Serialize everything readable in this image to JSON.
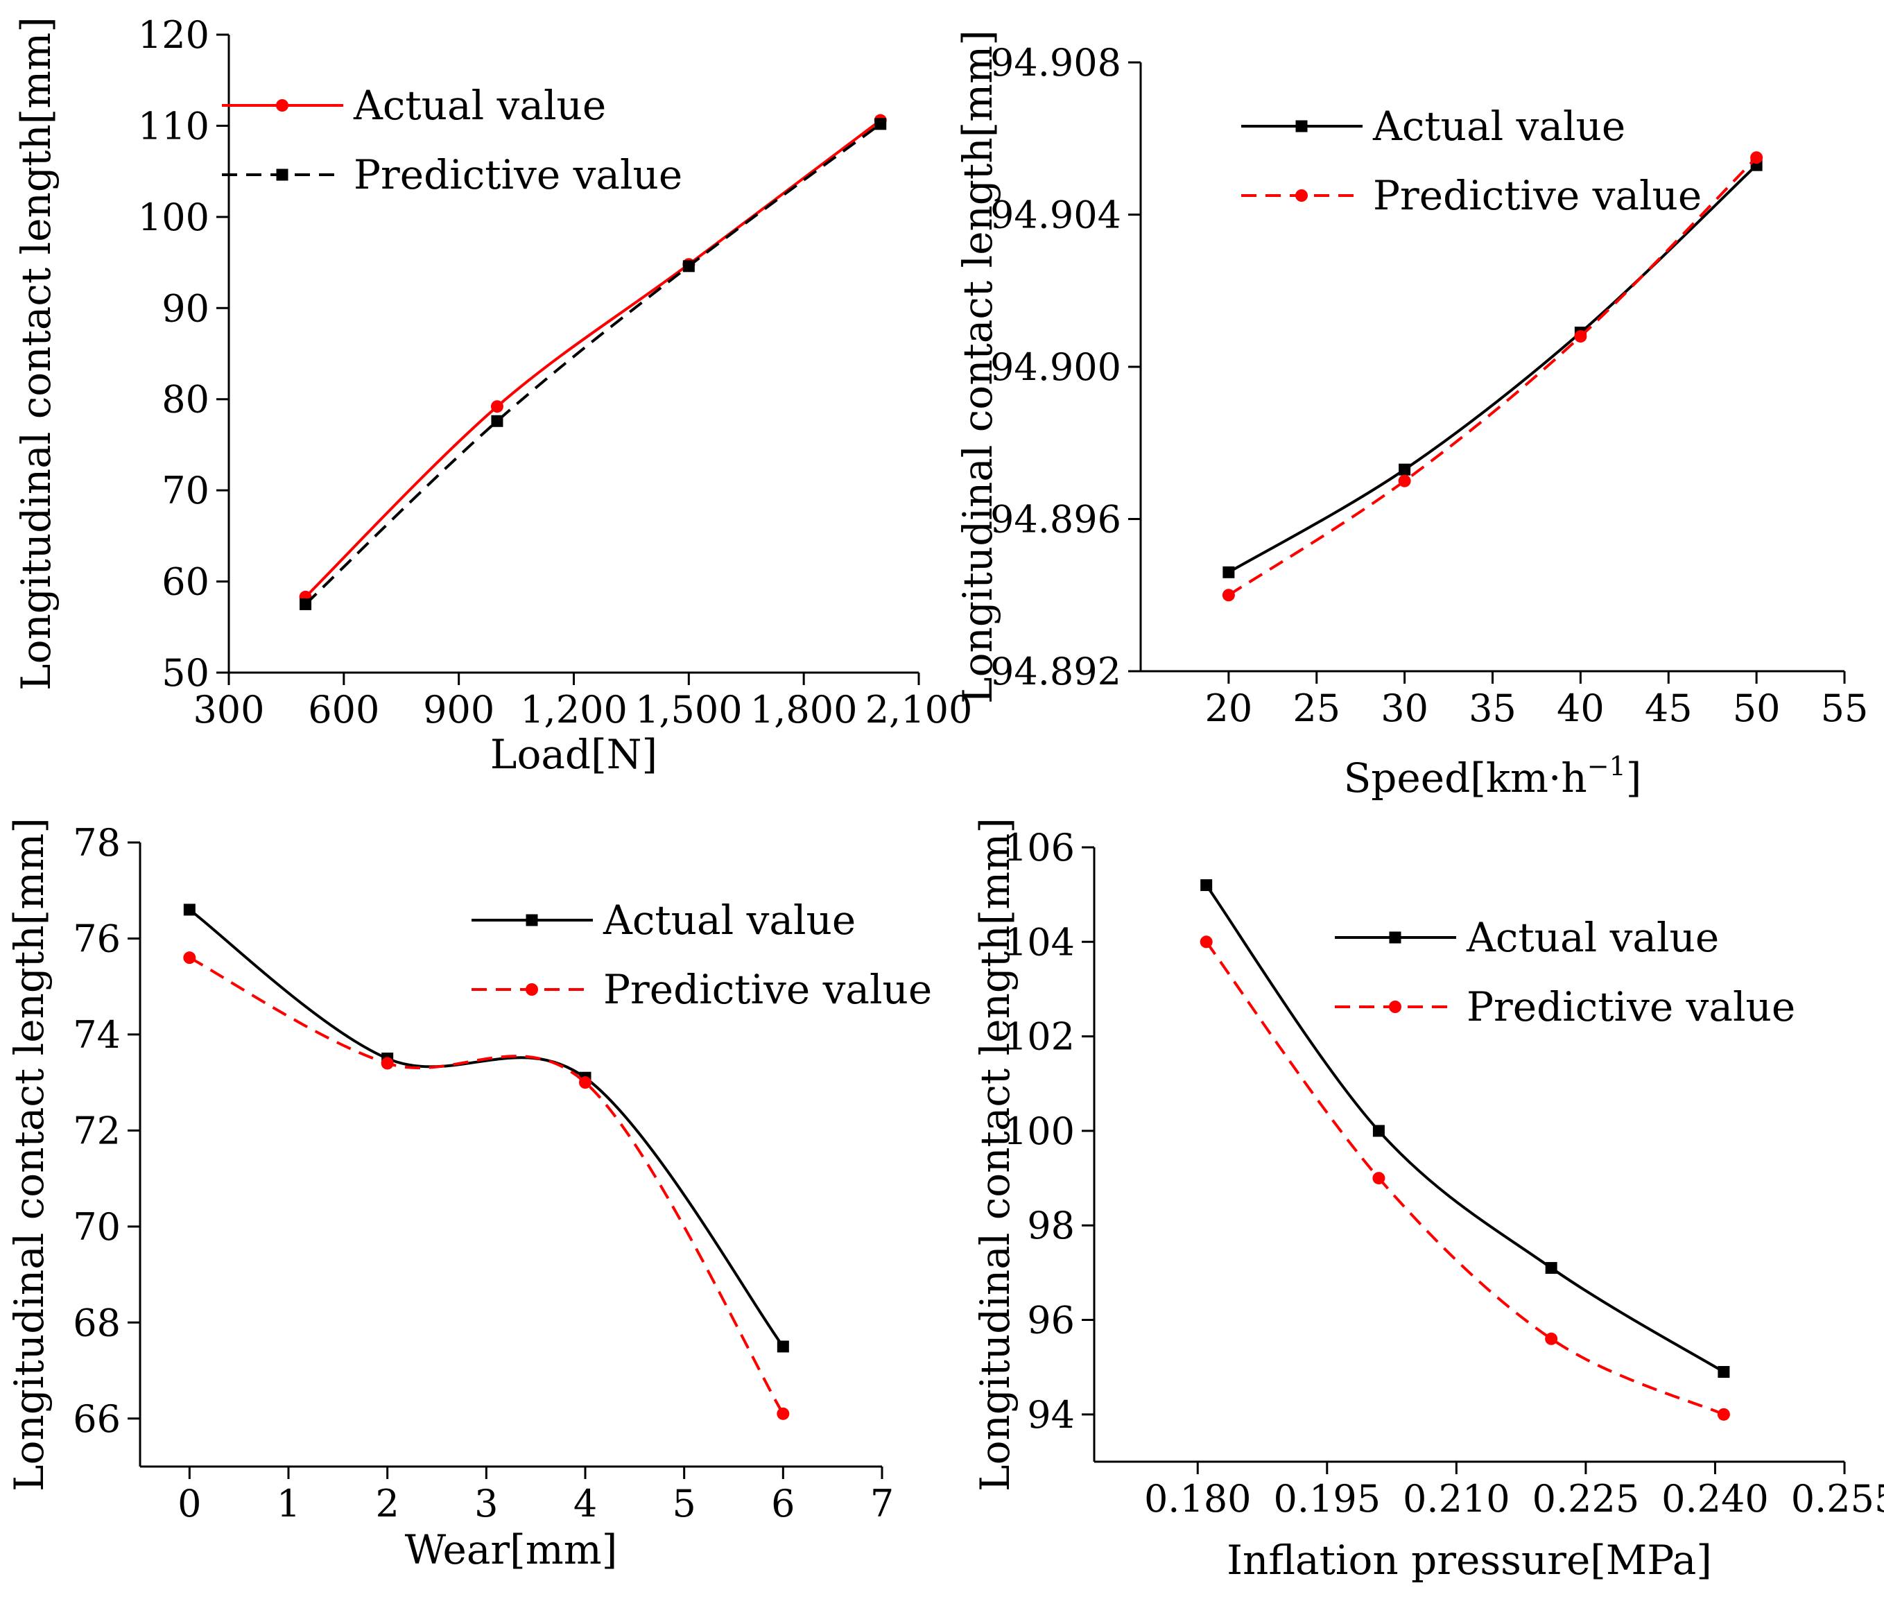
{
  "chart_data": [
    {
      "type": "line",
      "xlabel": "Load[N]",
      "ylabel": "Longitudinal contact length[mm]",
      "xlim": [
        300,
        2100
      ],
      "ylim": [
        50,
        120
      ],
      "xticks": [
        300,
        600,
        900,
        1200,
        1500,
        1800,
        2100
      ],
      "xtick_labels": [
        "300",
        "600",
        "900",
        "1,200",
        "1,500",
        "1,800",
        "2,100"
      ],
      "yticks": [
        50,
        60,
        70,
        80,
        90,
        100,
        110,
        120
      ],
      "ytick_labels": [
        "50",
        "60",
        "70",
        "80",
        "90",
        "100",
        "110",
        "120"
      ],
      "legend_position": "top-left",
      "series": [
        {
          "name": "Actual value",
          "color": "#ff0000",
          "dash": "solid",
          "marker": "circle",
          "x": [
            500,
            1000,
            1500,
            2000
          ],
          "y": [
            58.3,
            79.2,
            94.8,
            110.6
          ]
        },
        {
          "name": "Predictive value",
          "color": "#000000",
          "dash": "dashed",
          "marker": "square",
          "x": [
            500,
            1000,
            1500,
            2000
          ],
          "y": [
            57.5,
            77.6,
            94.6,
            110.2
          ]
        }
      ]
    },
    {
      "type": "line",
      "xlabel": "Speed[km·h",
      "xlabel_sup": "−1",
      "xlabel_end": "]",
      "ylabel": "Longitudinal contact length[mm]",
      "xlim": [
        15,
        55
      ],
      "ylim": [
        94.892,
        94.908
      ],
      "xticks": [
        20,
        25,
        30,
        35,
        40,
        45,
        50,
        55
      ],
      "xtick_labels": [
        "20",
        "25",
        "30",
        "35",
        "40",
        "45",
        "50",
        "55"
      ],
      "yticks": [
        94.892,
        94.896,
        94.9,
        94.904,
        94.908
      ],
      "ytick_labels": [
        "94.892",
        "94.896",
        "94.900",
        "94.904",
        "94.908"
      ],
      "legend_position": "top-left",
      "series": [
        {
          "name": "Actual value",
          "color": "#000000",
          "dash": "solid",
          "marker": "square",
          "x": [
            20,
            30,
            40,
            50
          ],
          "y": [
            94.8946,
            94.8973,
            94.9009,
            94.9053
          ]
        },
        {
          "name": "Predictive value",
          "color": "#ff0000",
          "dash": "dashed",
          "marker": "circle",
          "x": [
            20,
            30,
            40,
            50
          ],
          "y": [
            94.894,
            94.897,
            94.9008,
            94.9055
          ]
        }
      ]
    },
    {
      "type": "line",
      "xlabel": "Wear[mm]",
      "ylabel": "Longitudinal contact length[mm]",
      "xlim": [
        -0.5,
        7
      ],
      "ylim": [
        65,
        78
      ],
      "xticks": [
        0,
        1,
        2,
        3,
        4,
        5,
        6,
        7
      ],
      "xtick_labels": [
        "0",
        "1",
        "2",
        "3",
        "4",
        "5",
        "6",
        "7"
      ],
      "yticks": [
        66,
        68,
        70,
        72,
        74,
        76,
        78
      ],
      "ytick_labels": [
        "66",
        "68",
        "70",
        "72",
        "74",
        "76",
        "78"
      ],
      "legend_position": "top-right",
      "series": [
        {
          "name": "Actual value",
          "color": "#000000",
          "dash": "solid",
          "marker": "square",
          "x": [
            0,
            2,
            4,
            6
          ],
          "y": [
            76.6,
            73.5,
            73.1,
            67.5
          ]
        },
        {
          "name": "Predictive value",
          "color": "#ff0000",
          "dash": "dashed",
          "marker": "circle",
          "x": [
            0,
            2,
            4,
            6
          ],
          "y": [
            75.6,
            73.4,
            73.0,
            66.1
          ]
        }
      ]
    },
    {
      "type": "line",
      "xlabel": "Inflation pressure[MPa]",
      "ylabel": "Longitudinal contact length[mm]",
      "xlim": [
        0.168,
        0.255
      ],
      "ylim": [
        93,
        106
      ],
      "xticks": [
        0.18,
        0.195,
        0.21,
        0.225,
        0.24,
        0.255
      ],
      "xtick_labels": [
        "0.180",
        "0.195",
        "0.210",
        "0.225",
        "0.240",
        "0.255"
      ],
      "yticks": [
        94,
        96,
        98,
        100,
        102,
        104,
        106
      ],
      "ytick_labels": [
        "94",
        "96",
        "98",
        "100",
        "102",
        "104",
        "106"
      ],
      "legend_position": "top-right",
      "series": [
        {
          "name": "Actual value",
          "color": "#000000",
          "dash": "solid",
          "marker": "square",
          "x": [
            0.181,
            0.201,
            0.221,
            0.241
          ],
          "y": [
            105.2,
            100.0,
            97.1,
            94.9
          ]
        },
        {
          "name": "Predictive value",
          "color": "#ff0000",
          "dash": "dashed",
          "marker": "circle",
          "x": [
            0.181,
            0.201,
            0.221,
            0.241
          ],
          "y": [
            104.0,
            99.0,
            95.6,
            94.0
          ]
        }
      ]
    }
  ]
}
